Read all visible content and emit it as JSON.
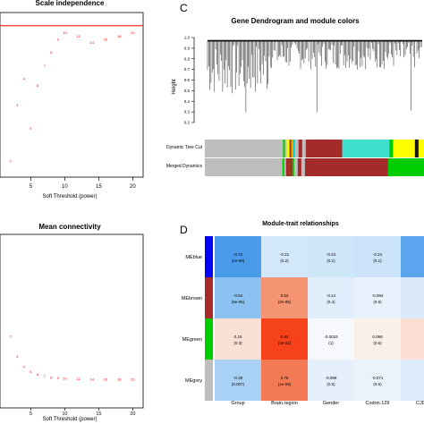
{
  "panels": {
    "c_letter": "C",
    "d_letter": "D"
  },
  "scale": {
    "title": "Scale independence",
    "xlabel": "Soft Threshold (power)",
    "ticks": [
      "5",
      "10",
      "15",
      "20"
    ],
    "x": [
      2,
      3,
      4,
      5,
      6,
      7,
      8,
      9,
      10,
      12,
      14,
      16,
      18,
      20
    ],
    "y": [
      0.55,
      0.72,
      0.8,
      0.65,
      0.78,
      0.84,
      0.88,
      0.92,
      0.94,
      0.93,
      0.91,
      0.92,
      0.93,
      0.94
    ],
    "labels": [
      "2",
      "3",
      "4",
      "5",
      "6",
      "7",
      "8",
      "9",
      "10",
      "12",
      "14",
      "16",
      "18",
      "20"
    ],
    "cutoff": 0.96,
    "ylim": [
      0.5,
      1.0
    ],
    "line_color": "#ff0000"
  },
  "mean_conn": {
    "title": "Mean connectivity",
    "xlabel": "Soft Threshold (power)",
    "ticks": [
      "5",
      "10",
      "15",
      "20"
    ],
    "x": [
      2,
      3,
      4,
      5,
      6,
      7,
      8,
      9,
      10,
      12,
      14,
      16,
      18,
      20
    ],
    "y": [
      150,
      80,
      45,
      28,
      18,
      12,
      8,
      6,
      4.5,
      3,
      2,
      1.5,
      1,
      0.8
    ],
    "labels": [
      "2",
      "3",
      "4",
      "5",
      "6",
      "7",
      "8",
      "9",
      "10",
      "12",
      "14",
      "16",
      "18",
      "20"
    ],
    "ylim": [
      0,
      600
    ]
  },
  "dendro": {
    "title": "Gene Dendrogram and module colors",
    "ylabel": "Height",
    "ticks": [
      "0.2",
      "0.3",
      "0.4",
      "0.5",
      "0.6",
      "0.7",
      "0.8",
      "0.9",
      "1.0"
    ],
    "row1_label": "Dynamic Tree Cut",
    "row2_label": "Merged Dynamics",
    "row1": [
      {
        "w": 0.43,
        "c": "#bebebe"
      },
      {
        "w": 0.01,
        "c": "#00cd00"
      },
      {
        "w": 0.01,
        "c": "#bebebe"
      },
      {
        "w": 0.015,
        "c": "#ffff00"
      },
      {
        "w": 0.01,
        "c": "#8b4513"
      },
      {
        "w": 0.01,
        "c": "#ffa500"
      },
      {
        "w": 0.01,
        "c": "#00ced1"
      },
      {
        "w": 0.02,
        "c": "#bebebe"
      },
      {
        "w": 0.02,
        "c": "#a52a2a"
      },
      {
        "w": 0.02,
        "c": "#bebebe"
      },
      {
        "w": 0.2,
        "c": "#a52a2a"
      },
      {
        "w": 0.26,
        "c": "#40e0d0"
      },
      {
        "w": 0.02,
        "c": "#00cd00"
      },
      {
        "w": 0.04,
        "c": "#ffff00"
      },
      {
        "w": 0.08,
        "c": "#ffff00"
      },
      {
        "w": 0.02,
        "c": "#1a1a1a"
      },
      {
        "w": 0.03,
        "c": "#ffff00"
      }
    ],
    "row2": [
      {
        "w": 0.43,
        "c": "#bebebe"
      },
      {
        "w": 0.01,
        "c": "#00cd00"
      },
      {
        "w": 0.01,
        "c": "#bebebe"
      },
      {
        "w": 0.015,
        "c": "#a52a2a"
      },
      {
        "w": 0.01,
        "c": "#8b4513"
      },
      {
        "w": 0.01,
        "c": "#a52a2a"
      },
      {
        "w": 0.01,
        "c": "#00cd00"
      },
      {
        "w": 0.02,
        "c": "#bebebe"
      },
      {
        "w": 0.02,
        "c": "#a52a2a"
      },
      {
        "w": 0.02,
        "c": "#bebebe"
      },
      {
        "w": 0.46,
        "c": "#a52a2a"
      },
      {
        "w": 0.17,
        "c": "#00cd00"
      },
      {
        "w": 0.03,
        "c": "#00cd00"
      }
    ]
  },
  "heatmap": {
    "title": "Module-trait relationships",
    "rows": [
      "MEblue",
      "MEbrown",
      "MEgreen",
      "MEgrey"
    ],
    "row_colors": [
      "#0000ff",
      "#a52a2a",
      "#00cd00",
      "#bebebe"
    ],
    "cols": [
      "Group",
      "Brain.region",
      "Gender",
      "Codon.129",
      "CJD.su"
    ],
    "cells": [
      [
        {
          "v": "-0.72",
          "p": "(1e-08)",
          "c": "#4a9bea"
        },
        {
          "v": "-0.21",
          "p": "(0.2)",
          "c": "#d3e8fa"
        },
        {
          "v": "-0.23",
          "p": "(0.1)",
          "c": "#cfe5f8"
        },
        {
          "v": "-0.24",
          "p": "(0.1)",
          "c": "#cbe3f8"
        },
        {
          "v": "",
          "p": "",
          "c": "#5ba4ee"
        }
      ],
      [
        {
          "v": "-0.54",
          "p": "(6e-05)",
          "c": "#8cc2f2"
        },
        {
          "v": "0.63",
          "p": "(2e-06)",
          "c": "#f59473"
        },
        {
          "v": "-0.14",
          "p": "(0.4)",
          "c": "#e0eefb"
        },
        {
          "v": "-0.084",
          "p": "(0.6)",
          "c": "#e8f2fc"
        },
        {
          "v": "",
          "p": "",
          "c": "#dbeafb"
        }
      ],
      [
        {
          "v": "0.15",
          "p": "(0.3)",
          "c": "#fbe0d6"
        },
        {
          "v": "0.94",
          "p": "(3e-22)",
          "c": "#f5421a"
        },
        {
          "v": "-0.0033",
          "p": "(1)",
          "c": "#f6f8fc"
        },
        {
          "v": "0.069",
          "p": "(0.6)",
          "c": "#fbefea"
        },
        {
          "v": "",
          "p": "",
          "c": "#fbded2"
        }
      ],
      [
        {
          "v": "-0.39",
          "p": "(0.007)",
          "c": "#a8d1f5"
        },
        {
          "v": "0.75",
          "p": "(1e-09)",
          "c": "#f47a55"
        },
        {
          "v": "-0.099",
          "p": "(0.5)",
          "c": "#e6f0fc"
        },
        {
          "v": "-0.071",
          "p": "(0.6)",
          "c": "#eaf3fc"
        },
        {
          "v": "",
          "p": "",
          "c": "#dceafa"
        }
      ]
    ]
  }
}
